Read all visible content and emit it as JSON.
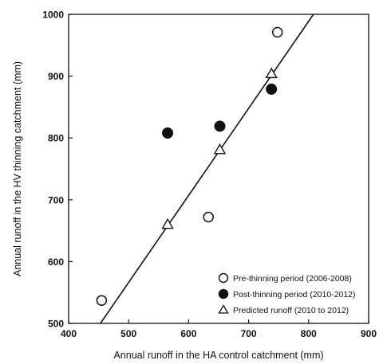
{
  "chart_data": {
    "type": "scatter",
    "xlabel": "Annual runoff in the HA control catchment (mm)",
    "ylabel": "Annual runoff in the HV thinning catchment (mm)",
    "xlim": [
      400,
      900
    ],
    "ylim": [
      500,
      1000
    ],
    "xticks": [
      "400",
      "500",
      "600",
      "700",
      "800",
      "900"
    ],
    "yticks": [
      "500",
      "600",
      "700",
      "800",
      "900",
      "1000"
    ],
    "grid": false,
    "legend_position": "bottom-right",
    "series": [
      {
        "name": "Pre-thinning period (2006-2008)",
        "marker": "open-circle",
        "points": [
          [
            455,
            537
          ],
          [
            633,
            672
          ],
          [
            748,
            971
          ]
        ]
      },
      {
        "name": "Post-thinning period (2010-2012)",
        "marker": "filled-circle",
        "points": [
          [
            565,
            808
          ],
          [
            652,
            819
          ],
          [
            738,
            879
          ]
        ]
      },
      {
        "name": "Predicted runoff (2010 to 2012)",
        "marker": "open-triangle",
        "points": [
          [
            565,
            660
          ],
          [
            652,
            781
          ],
          [
            738,
            904
          ]
        ]
      }
    ],
    "regression_line": {
      "from": [
        453,
        500
      ],
      "to": [
        808,
        1000
      ]
    },
    "colors": {
      "ink": "#111111",
      "fill_open": "#ffffff"
    }
  }
}
